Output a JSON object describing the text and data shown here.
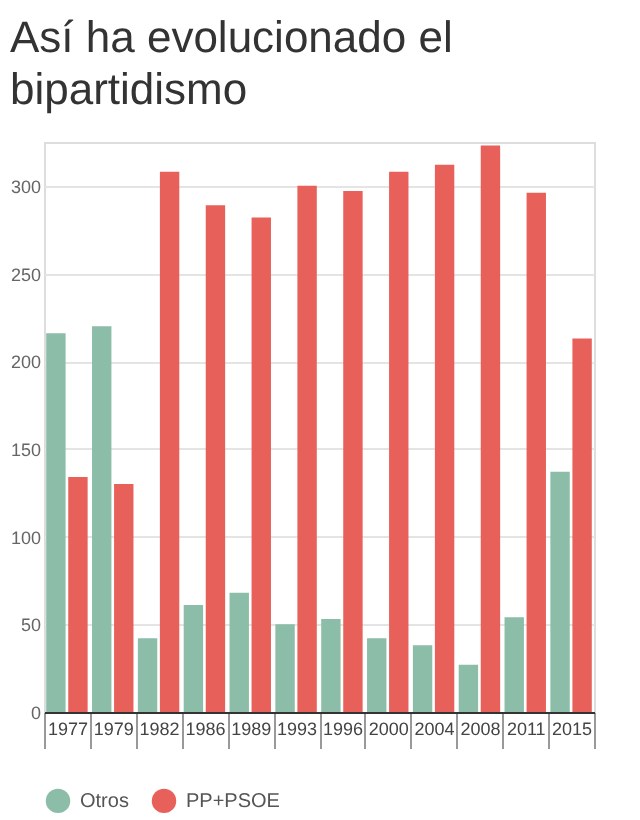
{
  "chart_data": {
    "type": "bar",
    "title": "Así ha evolucionado el bipartidismo",
    "categories": [
      "1977",
      "1979",
      "1982",
      "1986",
      "1989",
      "1993",
      "1996",
      "2000",
      "2004",
      "2008",
      "2011",
      "2015"
    ],
    "series": [
      {
        "name": "Otros",
        "color": "#8bbda8",
        "values": [
          216,
          220,
          42,
          61,
          68,
          50,
          53,
          42,
          38,
          27,
          54,
          137
        ]
      },
      {
        "name": "PP+PSOE",
        "color": "#e8605a",
        "values": [
          134,
          130,
          308,
          289,
          282,
          300,
          297,
          308,
          312,
          323,
          296,
          213
        ]
      }
    ],
    "ylim": [
      0,
      325
    ],
    "yticks": [
      0,
      50,
      100,
      150,
      200,
      250,
      300
    ],
    "grid": "y",
    "legend": "bottom"
  }
}
